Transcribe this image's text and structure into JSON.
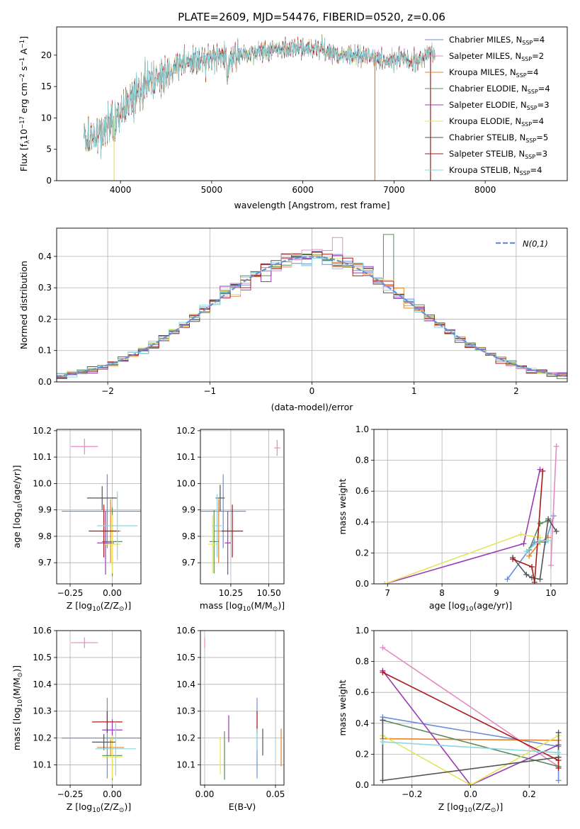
{
  "figure_title": "PLATE=2609, MJD=54476, FIBERID=0520, z=0.06",
  "colors": [
    "#6a8fd6",
    "#e58ac1",
    "#e6832b",
    "#5b8a5b",
    "#9a3bb5",
    "#e7e35f",
    "#555555",
    "#a61c1c",
    "#86d8de"
  ],
  "legend_labels": [
    "Chabrier MILES, N",
    "Salpeter MILES, N",
    "Kroupa MILES, N",
    "Chabrier ELODIE, N",
    "Salpeter ELODIE, N",
    "Kroupa ELODIE, N",
    "Chabrier STELIB, N",
    "Salpeter STELIB, N",
    "Kroupa STELIB, N"
  ],
  "legend_sub": "SSP",
  "legend_nssp": [
    "=4",
    "=2",
    "=4",
    "=4",
    "=3",
    "=4",
    "=5",
    "=3",
    "=4"
  ],
  "chart_data": [
    {
      "id": "spectrum",
      "type": "line",
      "xlabel": "wavelength [Angstrom, rest frame]",
      "ylabel_main": "Flux [f",
      "ylabel_lambda": "λ",
      "ylabel_10": "10",
      "ylabel_exp1": "−17",
      "ylabel_mid": " erg cm",
      "ylabel_exp2": "−2",
      "ylabel_s": " s",
      "ylabel_exp3": "−1",
      "ylabel_end": " A",
      "ylabel_exp4": "−1",
      "ylabel_close": "]",
      "xlim": [
        3300,
        8900
      ],
      "ylim": [
        0,
        24.5
      ],
      "xticks": [
        "4000",
        "5000",
        "6000",
        "7000",
        "8000"
      ],
      "xtick_values": [
        4000,
        5000,
        6000,
        7000,
        8000
      ],
      "yticks": [
        "0",
        "5",
        "10",
        "15",
        "20"
      ],
      "ytick_values": [
        0,
        5,
        10,
        15,
        20
      ],
      "continuum": [
        [
          3600,
          6.5
        ],
        [
          3700,
          7
        ],
        [
          3800,
          8
        ],
        [
          3900,
          9
        ],
        [
          4000,
          11
        ],
        [
          4100,
          13
        ],
        [
          4200,
          14.5
        ],
        [
          4300,
          15.5
        ],
        [
          4400,
          16.5
        ],
        [
          4500,
          17
        ],
        [
          4600,
          18
        ],
        [
          4700,
          18.5
        ],
        [
          4800,
          19
        ],
        [
          4900,
          19
        ],
        [
          5000,
          19.5
        ],
        [
          5100,
          19.5
        ],
        [
          5200,
          19.5
        ],
        [
          5300,
          20
        ],
        [
          5400,
          20
        ],
        [
          5500,
          20.5
        ],
        [
          5600,
          20.5
        ],
        [
          5700,
          21
        ],
        [
          5800,
          21
        ],
        [
          5900,
          21
        ],
        [
          6000,
          21
        ],
        [
          6100,
          21
        ],
        [
          6200,
          21
        ],
        [
          6300,
          20.5
        ],
        [
          6400,
          20
        ],
        [
          6500,
          20
        ],
        [
          6600,
          20
        ],
        [
          6700,
          20
        ],
        [
          6800,
          19.5
        ],
        [
          6900,
          19
        ],
        [
          7000,
          19.5
        ],
        [
          7100,
          20
        ],
        [
          7200,
          19
        ],
        [
          7300,
          19.5
        ],
        [
          7400,
          20.5
        ],
        [
          7450,
          20
        ]
      ],
      "spikes_down": [
        [
          3930,
          0
        ],
        [
          6790,
          0
        ],
        [
          7400,
          0
        ]
      ],
      "wl_start": 3600,
      "wl_end": 7450
    },
    {
      "id": "residuals",
      "type": "step",
      "xlabel": "(data-model)/error",
      "ylabel": "Normed distribution",
      "legend_label": "N(0,1)",
      "xlim": [
        -2.5,
        2.5
      ],
      "ylim": [
        0,
        0.49
      ],
      "xticks": [
        "−2",
        "−1",
        "0",
        "1",
        "2"
      ],
      "xtick_values": [
        -2,
        -1,
        0,
        1,
        2
      ],
      "yticks": [
        "0.0",
        "0.1",
        "0.2",
        "0.3",
        "0.4"
      ],
      "ytick_values": [
        0,
        0.1,
        0.2,
        0.3,
        0.4
      ],
      "bin_width": 0.1,
      "bin_start": -2.5
    },
    {
      "id": "z-vs-age",
      "type": "scatter",
      "xlabel": "Z [log",
      "xlabel_sub": "10",
      "xlabel_rest": "(Z/Z",
      "xlabel_sun": "⊙",
      "xlabel_end": ")]",
      "ylabel": "age  [log",
      "ylabel_sub": "10",
      "ylabel_rest": "(age/yr)]",
      "xlim": [
        -0.33,
        0.17
      ],
      "ylim": [
        9.62,
        10.205
      ],
      "xticks": [
        "−0.25",
        "0.00"
      ],
      "xtick_values": [
        -0.25,
        0.0
      ],
      "yticks": [
        "9.7",
        "9.8",
        "9.9",
        "10.0",
        "10.1",
        "10.2"
      ],
      "ytick_values": [
        9.7,
        9.8,
        9.9,
        10.0,
        10.1,
        10.2
      ],
      "points": [
        {
          "x": -0.03,
          "y": 9.895,
          "xerr": 0.27,
          "yerr": 0.14
        },
        {
          "x": -0.165,
          "y": 10.14,
          "xerr": 0.08,
          "yerr": 0.03
        },
        {
          "x": -0.01,
          "y": 9.82,
          "xerr": 0.06,
          "yerr": 0.12
        },
        {
          "x": 0.0,
          "y": 9.78,
          "xerr": 0.06,
          "yerr": 0.13
        },
        {
          "x": -0.04,
          "y": 9.775,
          "xerr": 0.05,
          "yerr": 0.12
        },
        {
          "x": 0.0,
          "y": 9.77,
          "xerr": 0.05,
          "yerr": 0.11
        },
        {
          "x": -0.06,
          "y": 9.945,
          "xerr": 0.09,
          "yerr": 0.045
        },
        {
          "x": -0.05,
          "y": 9.82,
          "xerr": 0.09,
          "yerr": 0.1
        },
        {
          "x": 0.03,
          "y": 9.84,
          "xerr": 0.12,
          "yerr": 0.13
        }
      ]
    },
    {
      "id": "mass-vs-age",
      "type": "scatter",
      "xlabel": "mass [log",
      "xlabel_sub": "10",
      "xlabel_rest": "(M/M",
      "xlabel_sun": "⊙",
      "xlabel_end": ")]",
      "xlim": [
        10.05,
        10.6
      ],
      "ylim": [
        9.62,
        10.205
      ],
      "xticks": [
        "10.25",
        "10.50"
      ],
      "xtick_values": [
        10.25,
        10.5
      ],
      "yticks": [
        "9.7",
        "9.8",
        "9.9",
        "10.0",
        "10.1",
        "10.2"
      ],
      "ytick_values": [
        9.7,
        9.8,
        9.9,
        10.0,
        10.1,
        10.2
      ],
      "points": [
        {
          "x": 10.2,
          "y": 9.895,
          "xerr": 0.15,
          "yerr": 0.14
        },
        {
          "x": 10.555,
          "y": 10.135,
          "xerr": 0.02,
          "yerr": 0.03
        },
        {
          "x": 10.17,
          "y": 9.82,
          "xerr": 0.03,
          "yerr": 0.12
        },
        {
          "x": 10.14,
          "y": 9.78,
          "xerr": 0.03,
          "yerr": 0.12
        },
        {
          "x": 10.23,
          "y": 9.775,
          "xerr": 0.02,
          "yerr": 0.12
        },
        {
          "x": 10.13,
          "y": 9.77,
          "xerr": 0.03,
          "yerr": 0.11
        },
        {
          "x": 10.18,
          "y": 9.945,
          "xerr": 0.03,
          "yerr": 0.05
        },
        {
          "x": 10.26,
          "y": 9.82,
          "xerr": 0.07,
          "yerr": 0.1
        },
        {
          "x": 10.16,
          "y": 9.84,
          "xerr": 0.03,
          "yerr": 0.12
        }
      ]
    },
    {
      "id": "age-vs-weight",
      "type": "line",
      "xlabel": "age  [log",
      "xlabel_sub": "10",
      "xlabel_rest": "(age/yr)]",
      "ylabel": "mass weight",
      "xlim": [
        6.75,
        10.3
      ],
      "ylim": [
        0,
        1.0
      ],
      "xticks": [
        "7",
        "8",
        "9",
        "10"
      ],
      "xtick_values": [
        7,
        8,
        9,
        10
      ],
      "yticks": [
        "0.0",
        "0.2",
        "0.4",
        "0.6",
        "0.8",
        "1.0"
      ],
      "ytick_values": [
        0,
        0.2,
        0.4,
        0.6,
        0.8,
        1.0
      ],
      "series": [
        {
          "values": [
            [
              9.2,
              0.03
            ],
            [
              9.7,
              0.27
            ],
            [
              9.9,
              0.27
            ],
            [
              10.05,
              0.44
            ]
          ]
        },
        {
          "values": [
            [
              10.0,
              0.12
            ],
            [
              10.1,
              0.89
            ]
          ]
        },
        {
          "values": [
            [
              9.6,
              0.18
            ],
            [
              9.8,
              0.27
            ],
            [
              9.95,
              0.3
            ]
          ]
        },
        {
          "values": [
            [
              9.6,
              0.22
            ],
            [
              9.8,
              0.39
            ],
            [
              9.95,
              0.41
            ]
          ]
        },
        {
          "values": [
            [
              6.95,
              0.0
            ],
            [
              9.5,
              0.26
            ],
            [
              9.8,
              0.74
            ]
          ]
        },
        {
          "values": [
            [
              6.95,
              0.0
            ],
            [
              9.45,
              0.32
            ],
            [
              9.8,
              0.3
            ]
          ]
        },
        {
          "values": [
            [
              9.3,
              0.17
            ],
            [
              9.55,
              0.06
            ],
            [
              9.65,
              0.04
            ],
            [
              9.8,
              0.03
            ],
            [
              9.95,
              0.42
            ],
            [
              10.1,
              0.34
            ]
          ]
        },
        {
          "values": [
            [
              9.3,
              0.16
            ],
            [
              9.65,
              0.11
            ],
            [
              9.7,
              0.01
            ],
            [
              9.85,
              0.73
            ]
          ]
        },
        {
          "values": [
            [
              9.55,
              0.21
            ],
            [
              9.8,
              0.28
            ],
            [
              9.95,
              0.28
            ]
          ]
        }
      ]
    },
    {
      "id": "z-vs-mass",
      "type": "scatter",
      "xlabel": "Z [log",
      "xlabel_sub": "10",
      "xlabel_rest": "(Z/Z",
      "xlabel_sun": "⊙",
      "xlabel_end": ")]",
      "ylabel": "mass [log",
      "ylabel_sub": "10",
      "ylabel_rest": "(M/M",
      "ylabel_sun": "⊙",
      "ylabel_end": ")]",
      "xlim": [
        -0.33,
        0.17
      ],
      "ylim": [
        10.025,
        10.6
      ],
      "xticks": [
        "−0.25",
        "0.00"
      ],
      "xtick_values": [
        -0.25,
        0.0
      ],
      "yticks": [
        "10.1",
        "10.2",
        "10.3",
        "10.4",
        "10.5",
        "10.6"
      ],
      "ytick_values": [
        10.1,
        10.2,
        10.3,
        10.4,
        10.5,
        10.6
      ],
      "points": [
        {
          "x": -0.03,
          "y": 10.2,
          "xerr": 0.27,
          "yerr": 0.15
        },
        {
          "x": -0.165,
          "y": 10.555,
          "xerr": 0.08,
          "yerr": 0.02
        },
        {
          "x": -0.01,
          "y": 10.165,
          "xerr": 0.08,
          "yerr": 0.03
        },
        {
          "x": 0.0,
          "y": 10.135,
          "xerr": 0.06,
          "yerr": 0.09
        },
        {
          "x": 0.0,
          "y": 10.23,
          "xerr": 0.06,
          "yerr": 0.04
        },
        {
          "x": 0.0,
          "y": 10.13,
          "xerr": 0.06,
          "yerr": 0.08
        },
        {
          "x": -0.05,
          "y": 10.185,
          "xerr": 0.07,
          "yerr": 0.03
        },
        {
          "x": -0.03,
          "y": 10.26,
          "xerr": 0.09,
          "yerr": 0.04
        },
        {
          "x": 0.02,
          "y": 10.16,
          "xerr": 0.12,
          "yerr": 0.1
        }
      ]
    },
    {
      "id": "ebv-vs-mass",
      "type": "scatter",
      "xlabel": "E(B-V)",
      "xlim": [
        -0.003,
        0.056
      ],
      "ylim": [
        10.025,
        10.6
      ],
      "xticks": [
        "0.00",
        "0.05"
      ],
      "xtick_values": [
        0.0,
        0.05
      ],
      "yticks": [
        "10.1",
        "10.2",
        "10.3",
        "10.4",
        "10.5",
        "10.6"
      ],
      "ytick_values": [
        10.1,
        10.2,
        10.3,
        10.4,
        10.5,
        10.6
      ],
      "points": [
        {
          "x": 0.037,
          "y": 10.2,
          "xerr": 0.0,
          "yerr": 0.15
        },
        {
          "x": 0.0,
          "y": 10.555,
          "xerr": 0.0,
          "yerr": 0.02
        },
        {
          "x": 0.054,
          "y": 10.165,
          "xerr": 0.0,
          "yerr": 0.07
        },
        {
          "x": 0.014,
          "y": 10.135,
          "xerr": 0.0,
          "yerr": 0.09
        },
        {
          "x": 0.017,
          "y": 10.235,
          "xerr": 0.0,
          "yerr": 0.05
        },
        {
          "x": 0.011,
          "y": 10.135,
          "xerr": 0.0,
          "yerr": 0.07
        },
        {
          "x": 0.041,
          "y": 10.185,
          "xerr": 0.0,
          "yerr": 0.05
        },
        {
          "x": 0.037,
          "y": 10.26,
          "xerr": 0.0,
          "yerr": 0.04
        },
        {
          "x": 0.037,
          "y": 10.195,
          "xerr": 0.0,
          "yerr": 0.04
        }
      ]
    },
    {
      "id": "z-vs-weight",
      "type": "line",
      "xlabel": "Z [log",
      "xlabel_sub": "10",
      "xlabel_rest": "(Z/Z",
      "xlabel_sun": "⊙",
      "xlabel_end": ")]",
      "ylabel": "mass weight",
      "xlim": [
        -0.33,
        0.33
      ],
      "ylim": [
        0,
        1.0
      ],
      "xticks": [
        "−0.2",
        "0.0",
        "0.2"
      ],
      "xtick_values": [
        -0.2,
        0.0,
        0.2
      ],
      "yticks": [
        "0.0",
        "0.2",
        "0.4",
        "0.6",
        "0.8",
        "1.0"
      ],
      "ytick_values": [
        0,
        0.2,
        0.4,
        0.6,
        0.8,
        1.0
      ],
      "series": [
        {
          "values": [
            [
              -0.3,
              0.44
            ],
            [
              0.3,
              0.25
            ],
            [
              0.3,
              0.03
            ]
          ]
        },
        {
          "values": [
            [
              -0.3,
              0.89
            ],
            [
              0.3,
              0.12
            ]
          ]
        },
        {
          "values": [
            [
              -0.3,
              0.3
            ],
            [
              0.3,
              0.29
            ],
            [
              0.3,
              0.18
            ]
          ]
        },
        {
          "values": [
            [
              -0.3,
              0.42
            ],
            [
              0.3,
              0.12
            ]
          ]
        },
        {
          "values": [
            [
              -0.3,
              0.74
            ],
            [
              0.0,
              0.0
            ],
            [
              0.3,
              0.26
            ]
          ]
        },
        {
          "values": [
            [
              -0.3,
              0.32
            ],
            [
              0.0,
              0.0
            ],
            [
              0.3,
              0.32
            ]
          ]
        },
        {
          "values": [
            [
              -0.3,
              0.42
            ],
            [
              -0.3,
              0.03
            ],
            [
              0.3,
              0.18
            ],
            [
              0.3,
              0.34
            ]
          ]
        },
        {
          "values": [
            [
              -0.3,
              0.73
            ],
            [
              0.3,
              0.16
            ],
            [
              0.3,
              0.11
            ]
          ]
        },
        {
          "values": [
            [
              -0.3,
              0.28
            ],
            [
              0.3,
              0.21
            ]
          ]
        }
      ]
    }
  ]
}
